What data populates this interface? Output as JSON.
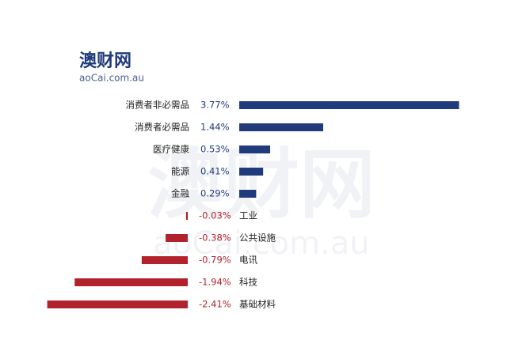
{
  "logo": {
    "title": "澳财网",
    "site": "aoCai.com.au"
  },
  "chart_data": {
    "type": "bar",
    "orientation": "horizontal",
    "categories": [
      "消费者非必需品",
      "消费者必需品",
      "医疗健康",
      "能源",
      "金融",
      "工业",
      "公共设施",
      "电讯",
      "科技",
      "基础材料"
    ],
    "values": [
      3.77,
      1.44,
      0.53,
      0.41,
      0.29,
      -0.03,
      -0.38,
      -0.79,
      -1.94,
      -2.41
    ],
    "value_labels": [
      "3.77%",
      "1.44%",
      "0.53%",
      "0.41%",
      "0.29%",
      "-0.03%",
      "-0.38%",
      "-0.79%",
      "-1.94%",
      "-2.41%"
    ],
    "positive_color": "#1f3b7b",
    "negative_color": "#b2222c"
  }
}
